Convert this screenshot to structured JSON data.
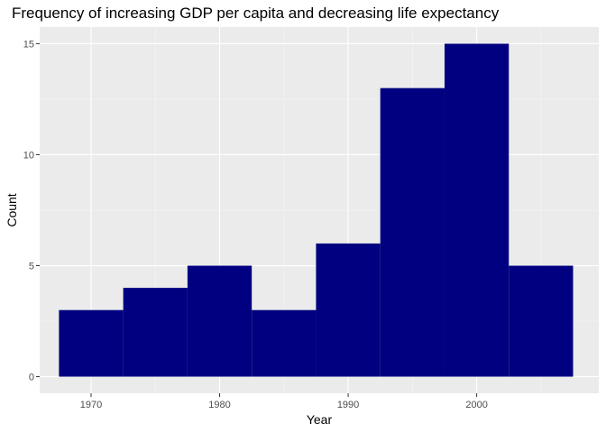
{
  "chart_data": {
    "type": "bar",
    "title": "Frequency of increasing GDP per capita and decreasing life expectancy",
    "xlabel": "Year",
    "ylabel": "Count",
    "bin_width": 5,
    "bins": [
      {
        "center": 1970,
        "count": 3
      },
      {
        "center": 1975,
        "count": 4
      },
      {
        "center": 1980,
        "count": 5
      },
      {
        "center": 1985,
        "count": 3
      },
      {
        "center": 1990,
        "count": 6
      },
      {
        "center": 1995,
        "count": 13
      },
      {
        "center": 2000,
        "count": 15
      },
      {
        "center": 2005,
        "count": 5
      }
    ],
    "x_ticks": [
      1970,
      1980,
      1990,
      2000
    ],
    "y_ticks": [
      0,
      5,
      10,
      15
    ],
    "xlim": [
      1966.0,
      2009.5
    ],
    "ylim": [
      -0.75,
      15.75
    ],
    "grid": true,
    "legend": "none",
    "colors": {
      "bar": "#000080",
      "panel": "#ebebeb",
      "grid_major": "#ffffff",
      "grid_minor": "#f5f5f5"
    }
  }
}
